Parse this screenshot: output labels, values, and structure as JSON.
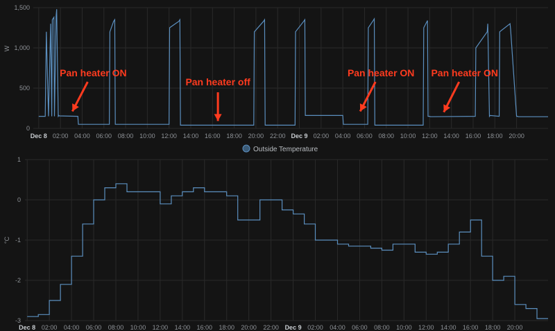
{
  "colors": {
    "background": "#141414",
    "grid": "#2a2a2a",
    "line": "#5b8fbf",
    "annotation": "#ff3b1f"
  },
  "chart_data": [
    {
      "type": "line",
      "title": "",
      "ylabel": "W",
      "ylim": [
        0,
        1500
      ],
      "y_ticks": [
        "0",
        "500",
        "1,000",
        "1,500"
      ],
      "y_tick_values": [
        0,
        500,
        1000,
        1500
      ],
      "x_tick_labels": [
        "Dec 8",
        "02:00",
        "04:00",
        "06:00",
        "08:00",
        "10:00",
        "12:00",
        "14:00",
        "16:00",
        "18:00",
        "20:00",
        "22:00",
        "Dec 9",
        "02:00",
        "04:00",
        "06:00",
        "08:00",
        "10:00",
        "12:00",
        "14:00",
        "16:00",
        "18:00",
        "20:00"
      ],
      "x_tick_bold": [
        true,
        false,
        false,
        false,
        false,
        false,
        false,
        false,
        false,
        false,
        false,
        false,
        true,
        false,
        false,
        false,
        false,
        false,
        false,
        false,
        false,
        false,
        false
      ],
      "xlim_hours": [
        -0.5,
        46.9
      ],
      "grid": true,
      "series": [
        {
          "values_desc": "power in W over time (hours since Dec 8 00:00)",
          "x": [
            0,
            0.6,
            0.7,
            0.9,
            1.1,
            1.2,
            1.25,
            1.4,
            1.45,
            1.6,
            1.65,
            1.8,
            1.85,
            1.9,
            3.6,
            3.65,
            6.5,
            6.55,
            6.9,
            7.0,
            7.05,
            12.0,
            12.05,
            12.9,
            13.0,
            13.05,
            19.8,
            19.85,
            20.7,
            20.8,
            20.85,
            23.6,
            23.65,
            24.4,
            24.5,
            24.55,
            28.0,
            28.05,
            30.3,
            30.35,
            30.8,
            30.9,
            30.95,
            35.4,
            35.45,
            35.8,
            35.85,
            36.0,
            36.05,
            40.2,
            40.25,
            41.3,
            41.35,
            41.5,
            41.55,
            42.4,
            42.45,
            43.4,
            43.45,
            44.0,
            44.1,
            44.15,
            46.9
          ],
          "y": [
            150,
            150,
            1200,
            150,
            1300,
            150,
            1350,
            1380,
            150,
            1400,
            1480,
            150,
            160,
            155,
            150,
            50,
            50,
            1200,
            1330,
            1350,
            50,
            50,
            1250,
            1330,
            1350,
            40,
            40,
            1200,
            1330,
            1350,
            40,
            40,
            1200,
            1330,
            1350,
            160,
            160,
            50,
            50,
            1250,
            1340,
            1360,
            40,
            40,
            1250,
            1340,
            150,
            150,
            145,
            150,
            1000,
            1200,
            1300,
            150,
            160,
            150,
            1200,
            1300,
            1230,
            150,
            150,
            145,
            145
          ]
        }
      ],
      "annotations": [
        {
          "text": "Pan heater ON",
          "x_hour": 3.1,
          "y_value": 160
        },
        {
          "text": "Pan heater off",
          "x_hour": 16.5,
          "y_value": 40
        },
        {
          "text": "Pan heater ON",
          "x_hour": 29.6,
          "y_value": 160
        },
        {
          "text": "Pan heater ON",
          "x_hour": 37.3,
          "y_value": 150
        }
      ]
    },
    {
      "type": "line",
      "title": "",
      "legend": [
        "Outside Temperature"
      ],
      "legend_placement": "top-center",
      "ylabel": "°C",
      "ylim": [
        -3,
        1
      ],
      "y_ticks": [
        "-3",
        "-2",
        "-1",
        "0",
        "1"
      ],
      "y_tick_values": [
        -3,
        -2,
        -1,
        0,
        1
      ],
      "x_tick_labels": [
        "Dec 8",
        "02:00",
        "04:00",
        "06:00",
        "08:00",
        "10:00",
        "12:00",
        "14:00",
        "16:00",
        "18:00",
        "20:00",
        "22:00",
        "Dec 9",
        "02:00",
        "04:00",
        "06:00",
        "08:00",
        "10:00",
        "12:00",
        "14:00",
        "16:00",
        "18:00",
        "20:00"
      ],
      "x_tick_bold": [
        true,
        false,
        false,
        false,
        false,
        false,
        false,
        false,
        false,
        false,
        false,
        false,
        true,
        false,
        false,
        false,
        false,
        false,
        false,
        false,
        false,
        false,
        false
      ],
      "xlim_hours": [
        -0.2,
        47.0
      ],
      "grid": true,
      "series": [
        {
          "name": "Outside Temperature",
          "step": true,
          "x": [
            0,
            1,
            2,
            3,
            4,
            5,
            6,
            7,
            8,
            9,
            10,
            11,
            12,
            13,
            14,
            15,
            16,
            17,
            18,
            19,
            20,
            21,
            22,
            23,
            24,
            25,
            26,
            27,
            28,
            29,
            30,
            31,
            32,
            33,
            34,
            35,
            36,
            37,
            38,
            39,
            40,
            41,
            42,
            43,
            44,
            45,
            46,
            47
          ],
          "values": [
            -2.9,
            -2.85,
            -2.5,
            -2.1,
            -1.4,
            -0.6,
            0.0,
            0.3,
            0.4,
            0.2,
            0.2,
            0.2,
            -0.1,
            0.1,
            0.2,
            0.3,
            0.2,
            0.2,
            0.1,
            -0.5,
            -0.5,
            0.0,
            0.0,
            -0.25,
            -0.35,
            -0.6,
            -1.0,
            -1.0,
            -1.1,
            -1.15,
            -1.15,
            -1.2,
            -1.25,
            -1.1,
            -1.1,
            -1.3,
            -1.35,
            -1.3,
            -1.1,
            -0.8,
            -0.5,
            -1.4,
            -2.0,
            -1.9,
            -2.6,
            -2.7,
            -2.95,
            -2.95
          ]
        }
      ]
    }
  ]
}
